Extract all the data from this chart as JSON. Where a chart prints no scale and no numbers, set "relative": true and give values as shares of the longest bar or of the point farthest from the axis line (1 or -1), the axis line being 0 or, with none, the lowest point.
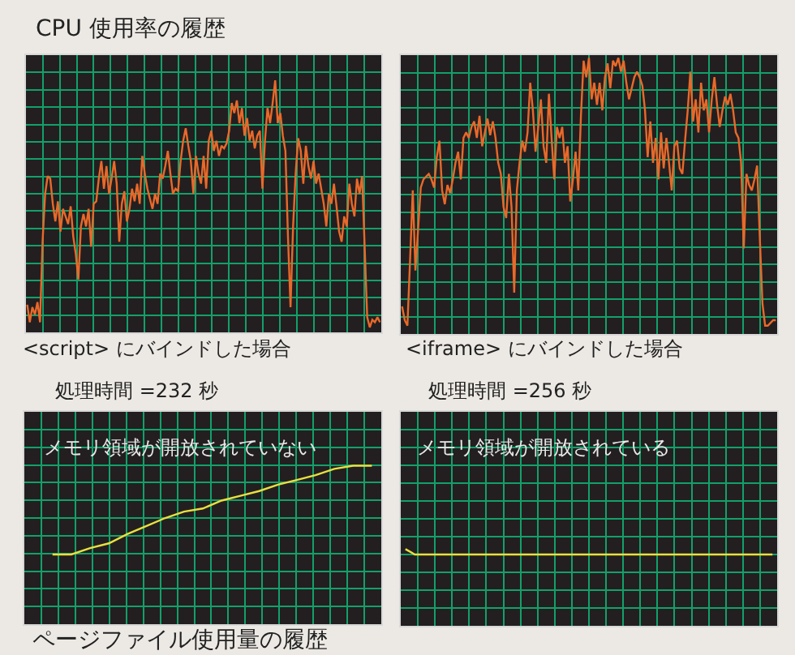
{
  "chart_data": [
    {
      "type": "line",
      "title": "CPU 使用率の履歴",
      "relative": true,
      "grid": true,
      "annotations": [
        "<script> にバインドした場合",
        "処理時間 =232 秒"
      ],
      "categories": [
        null,
        null,
        null,
        null,
        null,
        null,
        null,
        null,
        null,
        null,
        null,
        null,
        null,
        null,
        null,
        null,
        null,
        null,
        null,
        null,
        null,
        null,
        null,
        null,
        null,
        null,
        null,
        null,
        null,
        null,
        null,
        null,
        null,
        null,
        null,
        null,
        null,
        null,
        null,
        null,
        null,
        null,
        null,
        null,
        null,
        null,
        null,
        null,
        null,
        null,
        null,
        null,
        null,
        null,
        null,
        null,
        null,
        null,
        null,
        null,
        null,
        null,
        null,
        null,
        null,
        null,
        null,
        null,
        null,
        null,
        null,
        null,
        null,
        null,
        null,
        null,
        null,
        null,
        null,
        null,
        null,
        null,
        null,
        null,
        null,
        null,
        null,
        null,
        null,
        null,
        null,
        null,
        null,
        null,
        null,
        null,
        null,
        null,
        null,
        null,
        null,
        null,
        null,
        null,
        null,
        null,
        null,
        null,
        null,
        null,
        null,
        null,
        null,
        null,
        null,
        null,
        null,
        null,
        null,
        null,
        null,
        null,
        null,
        null,
        null,
        null,
        null,
        null,
        null,
        null,
        null,
        null,
        null,
        null,
        null,
        null,
        null,
        null,
        null
      ],
      "series": [
        {
          "color": "#e8692a",
          "values": [
            0.11,
            0.04,
            0.1,
            0.07,
            0.12,
            0.04,
            0.36,
            0.55,
            0.62,
            0.61,
            0.51,
            0.44,
            0.52,
            0.4,
            0.49,
            0.46,
            0.43,
            0.5,
            0.38,
            0.31,
            0.21,
            0.42,
            0.47,
            0.42,
            0.49,
            0.34,
            0.51,
            0.52,
            0.61,
            0.68,
            0.57,
            0.66,
            0.55,
            0.61,
            0.68,
            0.59,
            0.36,
            0.51,
            0.56,
            0.44,
            0.49,
            0.57,
            0.52,
            0.59,
            0.51,
            0.7,
            0.63,
            0.57,
            0.53,
            0.49,
            0.55,
            0.51,
            0.63,
            0.61,
            0.66,
            0.72,
            0.63,
            0.55,
            0.57,
            0.56,
            0.68,
            0.76,
            0.81,
            0.74,
            0.68,
            0.55,
            0.7,
            0.63,
            0.59,
            0.7,
            0.57,
            0.76,
            0.8,
            0.72,
            0.76,
            0.7,
            0.74,
            0.73,
            0.75,
            0.8,
            0.91,
            0.87,
            0.92,
            0.83,
            0.89,
            0.78,
            0.85,
            0.76,
            0.8,
            0.73,
            0.78,
            0.8,
            0.57,
            0.76,
            0.89,
            0.83,
            0.91,
            1.0,
            0.83,
            0.87,
            0.78,
            0.72,
            0.38,
            0.1,
            0.42,
            0.63,
            0.77,
            0.72,
            0.59,
            0.74,
            0.66,
            0.61,
            0.68,
            0.59,
            0.63,
            0.57,
            0.51,
            0.42,
            0.55,
            0.51,
            0.59,
            0.5,
            0.4,
            0.36,
            0.46,
            0.42,
            0.59,
            0.51,
            0.46,
            0.61,
            0.55,
            0.62,
            0.34,
            0.06,
            0.02,
            0.05,
            0.04,
            0.06,
            0.04
          ]
        }
      ]
    },
    {
      "type": "line",
      "relative": true,
      "grid": true,
      "annotations": [
        "<iframe> にバインドした場合",
        "処理時間 =256 秒"
      ],
      "categories": [
        null,
        null,
        null,
        null,
        null,
        null,
        null,
        null,
        null,
        null,
        null,
        null,
        null,
        null,
        null,
        null,
        null,
        null,
        null,
        null,
        null,
        null,
        null,
        null,
        null,
        null,
        null,
        null,
        null,
        null,
        null,
        null,
        null,
        null,
        null,
        null,
        null,
        null,
        null,
        null,
        null,
        null,
        null,
        null,
        null,
        null,
        null,
        null,
        null,
        null,
        null,
        null,
        null,
        null,
        null,
        null,
        null,
        null,
        null,
        null,
        null,
        null,
        null,
        null,
        null,
        null,
        null,
        null,
        null,
        null,
        null,
        null,
        null,
        null,
        null,
        null,
        null,
        null,
        null,
        null,
        null,
        null,
        null,
        null,
        null,
        null,
        null,
        null,
        null,
        null,
        null,
        null,
        null,
        null,
        null,
        null,
        null,
        null,
        null,
        null,
        null,
        null,
        null,
        null,
        null,
        null,
        null,
        null,
        null,
        null,
        null,
        null,
        null,
        null,
        null,
        null,
        null,
        null,
        null,
        null,
        null,
        null,
        null,
        null,
        null,
        null,
        null,
        null,
        null,
        null,
        null,
        null,
        null,
        null,
        null,
        null,
        null,
        null,
        null,
        null,
        null
      ],
      "series": [
        {
          "color": "#e8692a",
          "values": [
            0.1,
            0.05,
            0.03,
            0.27,
            0.52,
            0.23,
            0.38,
            0.53,
            0.56,
            0.57,
            0.58,
            0.56,
            0.53,
            0.64,
            0.7,
            0.52,
            0.47,
            0.54,
            0.51,
            0.56,
            0.62,
            0.66,
            0.56,
            0.71,
            0.73,
            0.71,
            0.75,
            0.77,
            0.71,
            0.79,
            0.68,
            0.73,
            0.78,
            0.72,
            0.77,
            0.71,
            0.62,
            0.58,
            0.46,
            0.42,
            0.58,
            0.46,
            0.15,
            0.52,
            0.62,
            0.7,
            0.66,
            0.73,
            0.91,
            0.81,
            0.66,
            0.75,
            0.85,
            0.68,
            0.62,
            0.87,
            0.71,
            0.56,
            0.75,
            0.71,
            0.75,
            0.62,
            0.68,
            0.48,
            0.56,
            0.66,
            0.52,
            0.79,
            0.99,
            0.93,
            1.0,
            0.85,
            0.91,
            0.83,
            0.91,
            0.81,
            0.93,
            0.98,
            0.89,
            0.99,
            0.97,
            1.0,
            0.95,
            0.99,
            0.91,
            0.85,
            0.89,
            0.93,
            0.95,
            0.93,
            0.9,
            0.81,
            0.64,
            0.77,
            0.62,
            0.71,
            0.56,
            0.73,
            0.6,
            0.71,
            0.62,
            0.52,
            0.68,
            0.7,
            0.6,
            0.58,
            0.7,
            0.81,
            0.95,
            0.77,
            0.85,
            0.73,
            0.91,
            0.81,
            0.85,
            0.73,
            0.85,
            0.93,
            0.83,
            0.75,
            0.81,
            0.86,
            0.83,
            0.87,
            0.81,
            0.73,
            0.71,
            0.62,
            0.31,
            0.58,
            0.54,
            0.52,
            0.56,
            0.61,
            0.35,
            0.11,
            0.03,
            0.03,
            0.04,
            0.05,
            0.05
          ]
        }
      ]
    },
    {
      "type": "line",
      "title": "ページファイル使用量の履歴",
      "relative": true,
      "grid": true,
      "annotations": [
        "メモリ領域が開放されていない"
      ],
      "categories": [
        null,
        null,
        null,
        null,
        null,
        null,
        null,
        null,
        null,
        null,
        null,
        null,
        null,
        null,
        null,
        null,
        null,
        null,
        null
      ],
      "series": [
        {
          "color": "#e8e040",
          "values": [
            null,
            0.44,
            0.44,
            0.48,
            0.51,
            0.57,
            0.62,
            0.67,
            0.71,
            0.73,
            0.78,
            0.81,
            0.84,
            0.88,
            0.91,
            0.94,
            0.98,
            1.0,
            1.0
          ]
        }
      ]
    },
    {
      "type": "line",
      "relative": true,
      "grid": true,
      "annotations": [
        "メモリ領域が開放されている"
      ],
      "categories": [
        null,
        null,
        null,
        null,
        null,
        null,
        null,
        null,
        null,
        null,
        null,
        null,
        null,
        null,
        null,
        null,
        null,
        null,
        null,
        null,
        null,
        null,
        null,
        null,
        null,
        null,
        null,
        null,
        null,
        null,
        null,
        null,
        null,
        null,
        null,
        null,
        null,
        null,
        null,
        null
      ],
      "series": [
        {
          "color": "#e8e040",
          "values": [
            1.0,
            0.93,
            0.93,
            0.93,
            0.93,
            0.93,
            0.93,
            0.93,
            0.93,
            0.93,
            0.93,
            0.93,
            0.93,
            0.93,
            0.93,
            0.93,
            0.93,
            0.93,
            0.93,
            0.93,
            0.93,
            0.93,
            0.93,
            0.93,
            0.93,
            0.93,
            0.93,
            0.93,
            0.93,
            0.93,
            0.93,
            0.93,
            0.93,
            0.93,
            0.93,
            0.93,
            0.93,
            0.93,
            0.93,
            0.93
          ]
        }
      ]
    }
  ]
}
